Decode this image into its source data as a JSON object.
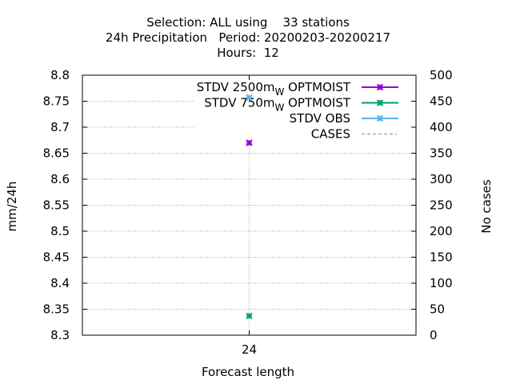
{
  "chart_data": {
    "type": "scatter",
    "title_lines": [
      "Selection: ALL using    33 stations",
      "24h Precipitation   Period: 20200203-20200217",
      "Hours:  12"
    ],
    "xlabel": "Forecast length",
    "ylabel": "mm/24h",
    "y2label": "No cases",
    "x_categories": [
      "24"
    ],
    "ylim": [
      8.3,
      8.8
    ],
    "yticks": [
      "8.3",
      "8.35",
      "8.4",
      "8.45",
      "8.5",
      "8.55",
      "8.6",
      "8.65",
      "8.7",
      "8.75",
      "8.8"
    ],
    "y2lim": [
      0,
      500
    ],
    "y2ticks": [
      "0",
      "50",
      "100",
      "150",
      "200",
      "250",
      "300",
      "350",
      "400",
      "450",
      "500"
    ],
    "grid": true,
    "legend_position": "top-right",
    "series": [
      {
        "name": "STDV 2500m",
        "subscript": "W",
        "name_suffix": " OPTMOIST",
        "color": "#9400d3",
        "marker": "x-star",
        "values": [
          8.67
        ]
      },
      {
        "name": "STDV 750m",
        "subscript": "W",
        "name_suffix": " OPTMOIST",
        "color": "#009e73",
        "marker": "x-star",
        "values": [
          8.337
        ]
      },
      {
        "name": "STDV OBS",
        "subscript": "",
        "name_suffix": "",
        "color": "#56b4e9",
        "marker": "x-star",
        "values": [
          8.757
        ]
      },
      {
        "name": "CASES",
        "subscript": "",
        "name_suffix": "",
        "color": "#a0a0a0",
        "marker": "dash",
        "axis": "y2",
        "values": []
      }
    ]
  }
}
